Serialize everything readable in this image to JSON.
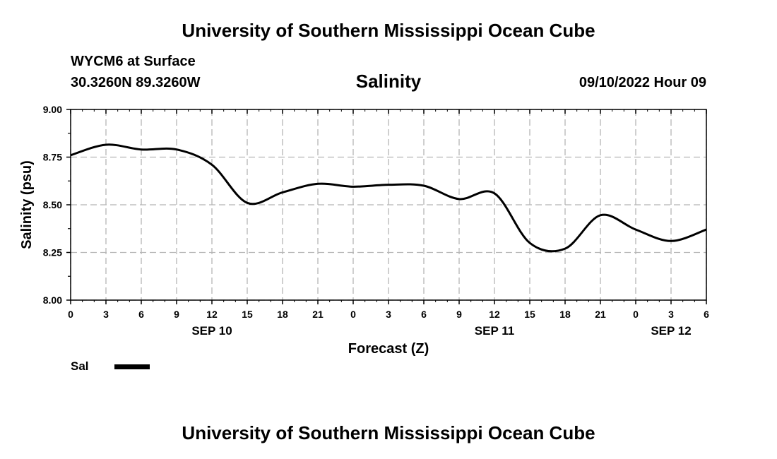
{
  "header": {
    "title": "University of Southern Mississippi Ocean Cube",
    "station": "WYCM6 at Surface",
    "coords": "30.3260N  89.3260W",
    "valid_time": "09/10/2022 Hour 09"
  },
  "footer": {
    "title": "University of Southern Mississippi Ocean Cube"
  },
  "legend": {
    "label": "Sal"
  },
  "chart_data": {
    "type": "line",
    "title": "Salinity",
    "xlabel": "Forecast (Z)",
    "ylabel": "Salinity (psu)",
    "ylim": [
      8.0,
      9.0
    ],
    "xlim": [
      0,
      54
    ],
    "yticks": [
      "8.00",
      "8.25",
      "8.50",
      "8.75",
      "9.00"
    ],
    "xtick_labels": [
      "0",
      "3",
      "6",
      "9",
      "12",
      "15",
      "18",
      "21",
      "0",
      "3",
      "6",
      "9",
      "12",
      "15",
      "18",
      "21",
      "0",
      "3",
      "6"
    ],
    "date_labels": [
      {
        "label": "SEP 10",
        "at_hour": 12
      },
      {
        "label": "SEP 11",
        "at_hour": 36
      },
      {
        "label": "SEP 12",
        "at_hour": 51
      }
    ],
    "grid": true,
    "series": [
      {
        "name": "Sal",
        "color": "#000000",
        "x": [
          0,
          3,
          6,
          9,
          12,
          15,
          18,
          21,
          24,
          27,
          30,
          33,
          36,
          39,
          42,
          45,
          48,
          51,
          54
        ],
        "y": [
          8.76,
          8.815,
          8.79,
          8.79,
          8.71,
          8.51,
          8.565,
          8.61,
          8.595,
          8.605,
          8.6,
          8.53,
          8.56,
          8.3,
          8.27,
          8.445,
          8.37,
          8.31,
          8.37
        ]
      }
    ]
  }
}
